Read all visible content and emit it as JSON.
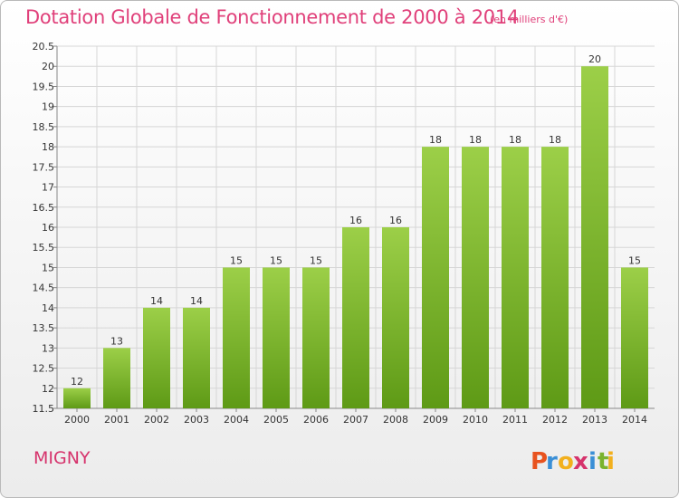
{
  "header": {
    "title": "Dotation Globale de Fonctionnement de 2000 à 2014",
    "subtitle": "(en milliers d'€)"
  },
  "footer": {
    "commune": "MIGNY",
    "logo_text": "Proxiti",
    "logo_letters": [
      "P",
      "r",
      "o",
      "x",
      "i",
      "t",
      "i"
    ],
    "logo_colors": [
      "#e8531f",
      "#3a8fd6",
      "#f2b01e",
      "#d6336c",
      "#3a8fd6",
      "#7ab32e",
      "#f2b01e"
    ]
  },
  "colors": {
    "bar_light": "#9ccf48",
    "bar_dark": "#5e9a16",
    "grid": "#d6d6d6",
    "title": "#e0407a"
  },
  "chart_data": {
    "type": "bar",
    "title": "Dotation Globale de Fonctionnement de 2000 à 2014",
    "subtitle": "(en milliers d'€)",
    "categories": [
      "2000",
      "2001",
      "2002",
      "2003",
      "2004",
      "2005",
      "2006",
      "2007",
      "2008",
      "2009",
      "2010",
      "2011",
      "2012",
      "2013",
      "2014"
    ],
    "values": [
      12,
      13,
      14,
      14,
      15,
      15,
      15,
      16,
      16,
      18,
      18,
      18,
      18,
      20,
      15
    ],
    "ylim": [
      11.5,
      20.5
    ],
    "yticks": [
      11.5,
      12,
      12.5,
      13,
      13.5,
      14,
      14.5,
      15,
      15.5,
      16,
      16.5,
      17,
      17.5,
      18,
      18.5,
      19,
      19.5,
      20,
      20.5
    ],
    "grid": true,
    "legend": "none"
  }
}
